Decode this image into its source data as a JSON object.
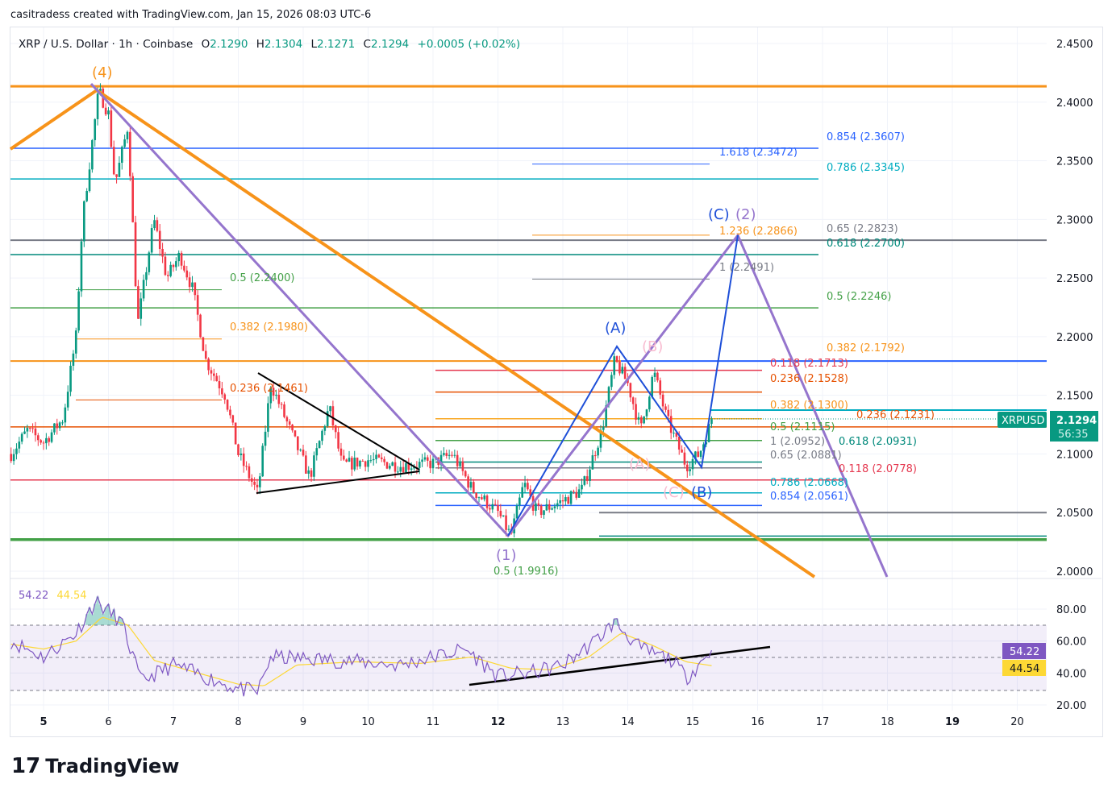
{
  "credit": "casitradess created with TradingView.com, Jan 15, 2026 08:03 UTC-6",
  "legend": {
    "symbol": "XRP / U.S. Dollar · 1h · Coinbase",
    "o_label": "O",
    "o": "2.1290",
    "h_label": "H",
    "h": "2.1304",
    "l_label": "L",
    "l": "2.1271",
    "c_label": "C",
    "c": "2.1294",
    "change": "+0.0005 (+0.02%)"
  },
  "rsi_legend": {
    "rsi": "54.22",
    "ma": "44.54"
  },
  "price_tag": {
    "symbol": "XRPUSD",
    "price": "2.1294",
    "countdown": "56:35"
  },
  "rsi_tags": {
    "rsi": "54.22",
    "ma": "44.54"
  },
  "waves": {
    "w4": "(4)",
    "w1": "(1)",
    "wA": "(A)",
    "wB": "(B)",
    "wB2": "(B)",
    "wC": "(C)",
    "w2": "(2)",
    "wa": "(A)",
    "wc": "(C)"
  },
  "fib_labels": {
    "f1": "0.854 (2.3607)",
    "f2": "1.618 (2.3472)",
    "f3": "0.786 (2.3345)",
    "f4": "1.236 (2.2866)",
    "f5": "0.65 (2.2823)",
    "f6": "0.618 (2.2700)",
    "f7": "1 (2.2491)",
    "f8": "0.5 (2.2400)",
    "f9": "0.5 (2.2246)",
    "f10": "0.382 (2.1980)",
    "f11": "0.382 (2.1792)",
    "f12": "0.118 (2.1713)",
    "f13": "0.236 (2.1528)",
    "f14": "0.236 (2.1461)",
    "f15": "0.382 (2.1300)",
    "f16": "0.236 (2.1231)",
    "f17": "0.5 (2.1115)",
    "f18": "1 (2.0952)",
    "f19": "0.618 (2.0931)",
    "f20": "0.65 (2.0881)",
    "f21": "0.118 (2.0778)",
    "f22": "0.786 (2.0668)",
    "f23": "0.854 (2.0561)",
    "f24": "0.5 (1.9916)"
  },
  "colors": {
    "up": "#089981",
    "down": "#f23645",
    "rsi": "#7e57c2",
    "rsi_ma": "#fdd835",
    "orange": "#f7931a",
    "purple": "#9575cd",
    "blue": "#1e4fd8"
  },
  "chart_data": {
    "type": "candlestick",
    "timeframe": "1h",
    "x_ticks": [
      "5",
      "6",
      "7",
      "8",
      "9",
      "10",
      "11",
      "12",
      "13",
      "14",
      "15",
      "16",
      "17",
      "18",
      "19",
      "20"
    ],
    "y_ticks": [
      "2.4500",
      "2.4000",
      "2.3500",
      "2.3000",
      "2.2500",
      "2.2000",
      "2.1500",
      "2.1000",
      "2.0500",
      "2.0000"
    ],
    "ylim": [
      2.0,
      2.45
    ],
    "price_path_approx": [
      [
        4.5,
        2.1
      ],
      [
        4.75,
        2.12
      ],
      [
        5.0,
        2.11
      ],
      [
        5.3,
        2.13
      ],
      [
        5.5,
        2.2
      ],
      [
        5.6,
        2.3
      ],
      [
        5.85,
        2.41
      ],
      [
        6.0,
        2.39
      ],
      [
        6.1,
        2.33
      ],
      [
        6.3,
        2.38
      ],
      [
        6.45,
        2.21
      ],
      [
        6.7,
        2.3
      ],
      [
        6.9,
        2.25
      ],
      [
        7.1,
        2.27
      ],
      [
        7.3,
        2.24
      ],
      [
        7.5,
        2.18
      ],
      [
        7.8,
        2.15
      ],
      [
        8.0,
        2.1
      ],
      [
        8.3,
        2.066
      ],
      [
        8.5,
        2.16
      ],
      [
        8.8,
        2.12
      ],
      [
        9.1,
        2.08
      ],
      [
        9.4,
        2.14
      ],
      [
        9.6,
        2.09
      ],
      [
        10.0,
        2.095
      ],
      [
        10.5,
        2.09
      ],
      [
        11.0,
        2.092
      ],
      [
        11.3,
        2.1
      ],
      [
        11.6,
        2.07
      ],
      [
        12.0,
        2.05
      ],
      [
        12.2,
        2.03
      ],
      [
        12.4,
        2.075
      ],
      [
        12.6,
        2.05
      ],
      [
        13.0,
        2.06
      ],
      [
        13.3,
        2.07
      ],
      [
        13.6,
        2.12
      ],
      [
        13.8,
        2.18
      ],
      [
        14.0,
        2.16
      ],
      [
        14.2,
        2.12
      ],
      [
        14.4,
        2.17
      ],
      [
        14.6,
        2.13
      ],
      [
        14.9,
        2.09
      ],
      [
        15.1,
        2.1
      ],
      [
        15.3,
        2.1294
      ]
    ],
    "rsi": {
      "y_ticks": [
        "80.00",
        "60.00",
        "40.00",
        "20.00"
      ],
      "bands": [
        70,
        50,
        30
      ],
      "rsi_path_approx": [
        [
          4.5,
          60
        ],
        [
          5,
          50
        ],
        [
          5.5,
          65
        ],
        [
          5.8,
          85
        ],
        [
          6.2,
          72
        ],
        [
          6.5,
          35
        ],
        [
          7,
          45
        ],
        [
          8,
          30
        ],
        [
          8.3,
          28
        ],
        [
          8.5,
          50
        ],
        [
          9.5,
          48
        ],
        [
          10.5,
          45
        ],
        [
          11.5,
          55
        ],
        [
          12,
          38
        ],
        [
          12.5,
          40
        ],
        [
          13,
          45
        ],
        [
          13.5,
          60
        ],
        [
          13.8,
          72
        ],
        [
          14.2,
          55
        ],
        [
          14.7,
          48
        ],
        [
          14.9,
          37
        ],
        [
          15.3,
          54.22
        ]
      ],
      "ma_path_approx": [
        [
          4.5,
          58
        ],
        [
          5,
          55
        ],
        [
          5.5,
          60
        ],
        [
          5.9,
          75
        ],
        [
          6.3,
          70
        ],
        [
          6.7,
          48
        ],
        [
          7.2,
          42
        ],
        [
          8,
          33
        ],
        [
          8.4,
          32
        ],
        [
          8.9,
          45
        ],
        [
          9.8,
          47
        ],
        [
          10.8,
          46
        ],
        [
          11.6,
          50
        ],
        [
          12.2,
          43
        ],
        [
          12.8,
          42
        ],
        [
          13.4,
          50
        ],
        [
          13.9,
          65
        ],
        [
          14.4,
          57
        ],
        [
          14.9,
          47
        ],
        [
          15.3,
          44.54
        ]
      ]
    }
  }
}
